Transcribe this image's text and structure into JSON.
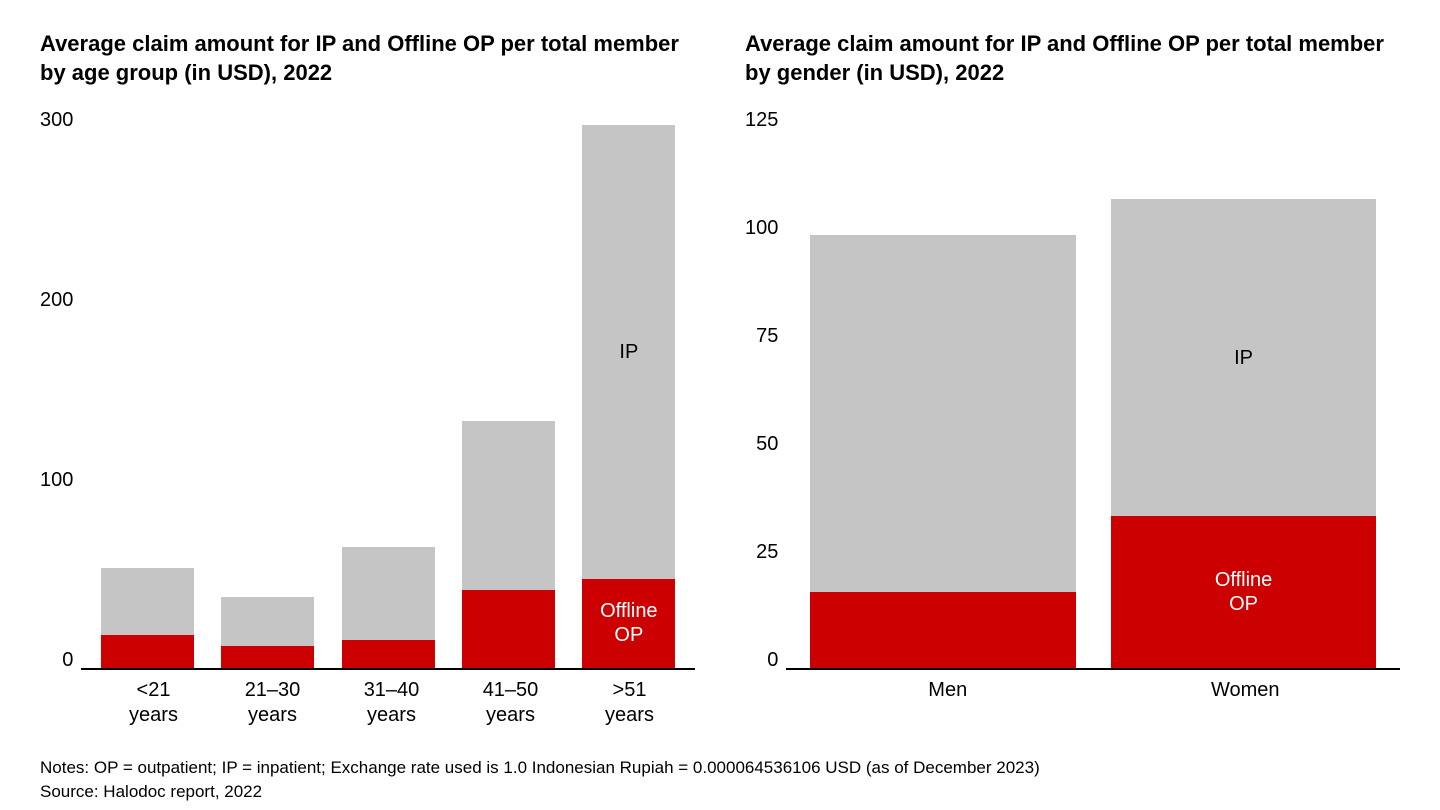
{
  "layout": {
    "panels": 2,
    "background_color": "#ffffff",
    "font_family": "Arial",
    "title_fontsize": 22,
    "title_fontweight": 700,
    "tick_fontsize": 20,
    "xlabel_fontsize": 20,
    "annotation_fontsize": 20,
    "footer_fontsize": 17
  },
  "age_chart": {
    "type": "stacked-bar",
    "title": "Average claim amount for IP and Offline OP\nper total member by age group (in USD), 2022",
    "ylim": [
      0,
      300
    ],
    "ytick_step": 100,
    "yticks": [
      "300",
      "200",
      "100",
      "0"
    ],
    "categories": [
      "<21\nyears",
      "21–30\nyears",
      "31–40\nyears",
      "41–50\nyears",
      ">51\nyears"
    ],
    "series": {
      "offline_op": {
        "label": "Offline\nOP",
        "color": "#cc0000",
        "values": [
          18,
          12,
          15,
          42,
          48
        ]
      },
      "ip": {
        "label": "IP",
        "color": "#c5c5c5",
        "values": [
          36,
          26,
          50,
          91,
          244
        ]
      }
    },
    "series_order_bottom_to_top": [
      "offline_op",
      "ip"
    ],
    "annotation_bar_index": 4,
    "ip_label_color": "#000000",
    "op_label_color": "#ffffff",
    "axis_color": "#000000",
    "bar_width_ratio": 0.86
  },
  "gender_chart": {
    "type": "stacked-bar",
    "title": "Average claim amount for IP and Offline OP\nper total member by gender (in USD), 2022",
    "ylim": [
      0,
      125
    ],
    "ytick_step": 25,
    "yticks": [
      "125",
      "100",
      "75",
      "50",
      "25",
      "0"
    ],
    "categories": [
      "Men",
      "Women"
    ],
    "series": {
      "offline_op": {
        "label": "Offline\nOP",
        "color": "#cc0000",
        "values": [
          17,
          34
        ]
      },
      "ip": {
        "label": "IP",
        "color": "#c5c5c5",
        "values": [
          80,
          71
        ]
      }
    },
    "series_order_bottom_to_top": [
      "offline_op",
      "ip"
    ],
    "annotation_bar_index": 1,
    "ip_label_color": "#000000",
    "op_label_color": "#ffffff",
    "axis_color": "#000000",
    "bar_width_ratio": 0.92
  },
  "footer": {
    "notes": "Notes: OP = outpatient; IP = inpatient; Exchange rate used is 1.0 Indonesian Rupiah = 0.000064536106 USD (as of December 2023)",
    "source": "Source: Halodoc report, 2022"
  }
}
